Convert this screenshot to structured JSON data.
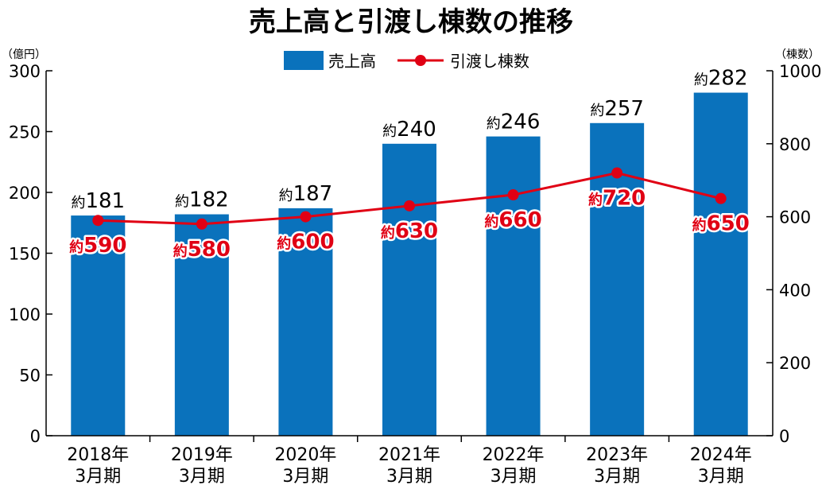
{
  "chart_data": {
    "type": "bar+line",
    "title": "売上高と引渡し棟数の推移",
    "left_unit": "（億円）",
    "right_unit": "（棟数）",
    "categories": [
      [
        "2018年",
        "3月期"
      ],
      [
        "2019年",
        "3月期"
      ],
      [
        "2020年",
        "3月期"
      ],
      [
        "2021年",
        "3月期"
      ],
      [
        "2022年",
        "3月期"
      ],
      [
        "2023年",
        "3月期"
      ],
      [
        "2024年",
        "3月期"
      ]
    ],
    "series": [
      {
        "name": "売上高",
        "type": "bar",
        "axis": "left",
        "color": "#0a72bc",
        "values": [
          181,
          182,
          187,
          240,
          246,
          257,
          282
        ],
        "label_prefix": "約",
        "labels": [
          "181",
          "182",
          "187",
          "240",
          "246",
          "257",
          "282"
        ]
      },
      {
        "name": "引渡し棟数",
        "type": "line",
        "axis": "right",
        "color": "#e00014",
        "values": [
          590,
          580,
          600,
          630,
          660,
          720,
          650
        ],
        "label_prefix": "約",
        "labels": [
          "590",
          "580",
          "600",
          "630",
          "660",
          "720",
          "650"
        ]
      }
    ],
    "left_axis": {
      "min": 0,
      "max": 300,
      "ticks": [
        0,
        50,
        100,
        150,
        200,
        250,
        300
      ]
    },
    "right_axis": {
      "min": 0,
      "max": 1000,
      "ticks": [
        0,
        200,
        400,
        600,
        800,
        1000
      ]
    },
    "grid": false,
    "legend": "top-center"
  }
}
